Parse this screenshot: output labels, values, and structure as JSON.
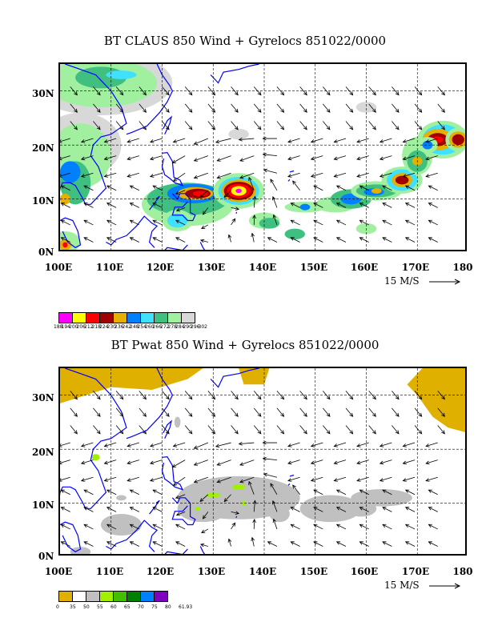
{
  "panels": [
    {
      "title": "BT CLAUS 850 Wind + Gyrelocs 851022/0000",
      "lat_labels": [
        "30N",
        "20N",
        "10N",
        "0N"
      ],
      "lon_labels": [
        "100E",
        "110E",
        "120E",
        "130E",
        "140E",
        "150E",
        "160E",
        "170E",
        "180"
      ],
      "vector_ref": "15 M/S",
      "legend": {
        "colors": [
          "#ff00ff",
          "#ffff00",
          "#ff0000",
          "#a00000",
          "#e6b000",
          "#0080ff",
          "#40e0ff",
          "#40c080",
          "#a0f0a0",
          "#d8d8d8"
        ],
        "ticks": [
          "188",
          "194",
          "200",
          "206",
          "212",
          "218",
          "224",
          "230",
          "236",
          "242",
          "248",
          "254",
          "260",
          "266",
          "272",
          "278",
          "284",
          "290",
          "296",
          "302"
        ]
      }
    },
    {
      "title": "BT Pwat 850 Wind + Gyrelocs 851022/0000",
      "lat_labels": [
        "30N",
        "20N",
        "10N",
        "0N"
      ],
      "lon_labels": [
        "100E",
        "110E",
        "120E",
        "130E",
        "140E",
        "150E",
        "160E",
        "170E",
        "180"
      ],
      "vector_ref": "15 M/S",
      "legend": {
        "colors": [
          "#e0b000",
          "#ffffff",
          "#c0c0c0",
          "#a0f000",
          "#40c000",
          "#008000",
          "#0080ff",
          "#8000c0"
        ],
        "ticks": [
          "0",
          "35",
          "50",
          "55",
          "60",
          "65",
          "70",
          "75",
          "80",
          "61.93"
        ]
      }
    }
  ]
}
